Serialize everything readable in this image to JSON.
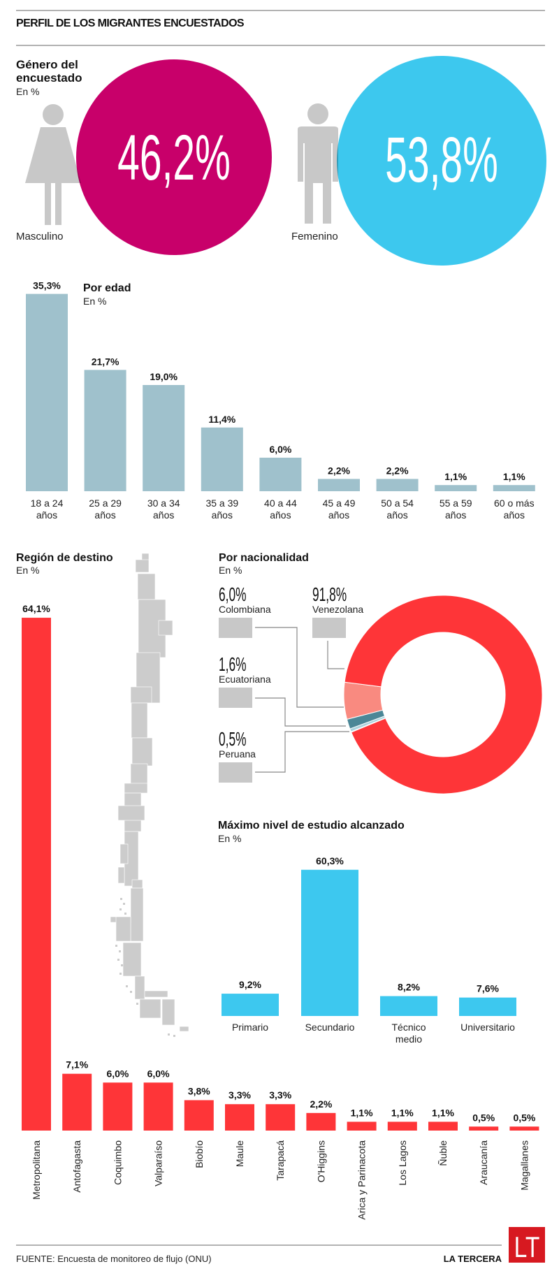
{
  "title": "PERFIL DE LOS MIGRANTES ENCUESTADOS",
  "colors": {
    "pink": "#c8006a",
    "blue": "#3dc8ee",
    "age_bar": "#9fc1cc",
    "region_bar": "#fe3538",
    "study_bar": "#3dc8ef",
    "figure": "#c8c8c8",
    "map": "#cccccc",
    "logo": "#d71920"
  },
  "gender": {
    "heading_line1": "Género del",
    "heading_line2": "encuestado",
    "unit": "En %",
    "masculino": {
      "label": "Masculino",
      "value_label": "46,2%",
      "value": 46.2,
      "icon": "female-figure-icon"
    },
    "femenino": {
      "label": "Femenino",
      "value_label": "53,8%",
      "value": 53.8,
      "icon": "male-figure-icon"
    }
  },
  "chart_data": [
    {
      "type": "bar",
      "title": "Por edad",
      "subtitle": "En %",
      "categories": [
        [
          "18 a 24",
          "años"
        ],
        [
          "25 a 29",
          "años"
        ],
        [
          "30 a 34",
          "años"
        ],
        [
          "35 a 39",
          "años"
        ],
        [
          "40 a 44",
          "años"
        ],
        [
          "45 a 49",
          "años"
        ],
        [
          "50 a 54",
          "años"
        ],
        [
          "55 a 59",
          "años"
        ],
        [
          "60 o más",
          "años"
        ]
      ],
      "values": [
        35.3,
        21.7,
        19.0,
        11.4,
        6.0,
        2.2,
        2.2,
        1.1,
        1.1
      ],
      "value_labels": [
        "35,3%",
        "21,7%",
        "19,0%",
        "11,4%",
        "6,0%",
        "2,2%",
        "2,2%",
        "1,1%",
        "1,1%"
      ],
      "ylim": [
        0,
        35.3
      ],
      "grid": false
    },
    {
      "type": "bar",
      "title": "Región de destino",
      "subtitle": "En %",
      "categories": [
        "Metropolitana",
        "Antofagasta",
        "Coquimbo",
        "Valparaíso",
        "Biobío",
        "Maule",
        "Tarapacá",
        "O'Higgins",
        "Arica y Parinacota",
        "Los Lagos",
        "Ñuble",
        "Araucanía",
        "Magallanes"
      ],
      "values": [
        64.1,
        7.1,
        6.0,
        6.0,
        3.8,
        3.3,
        3.3,
        2.2,
        1.1,
        1.1,
        1.1,
        0.5,
        0.5
      ],
      "value_labels": [
        "64,1%",
        "7,1%",
        "6,0%",
        "6,0%",
        "3,8%",
        "3,3%",
        "3,3%",
        "2,2%",
        "1,1%",
        "1,1%",
        "1,1%",
        "0,5%",
        "0,5%"
      ],
      "grid": false
    },
    {
      "type": "pie",
      "title": "Por nacionalidad",
      "subtitle": "En %",
      "donut": true,
      "slices": [
        {
          "name": "Venezolana",
          "value": 91.8,
          "label": "91,8%",
          "color": "#fe3538"
        },
        {
          "name": "Colombiana",
          "value": 6.0,
          "label": "6,0%",
          "color": "#f98a80"
        },
        {
          "name": "Ecuatoriana",
          "value": 1.6,
          "label": "1,6%",
          "color": "#4b8797"
        },
        {
          "name": "Peruana",
          "value": 0.5,
          "label": "0,5%",
          "color": "#a9d3de"
        }
      ]
    },
    {
      "type": "bar",
      "title": "Máximo nivel de estudio alcanzado",
      "subtitle": "En %",
      "categories": [
        [
          "Primario"
        ],
        [
          "Secundario"
        ],
        [
          "Técnico",
          "medio"
        ],
        [
          "Universitario"
        ]
      ],
      "values": [
        9.2,
        60.3,
        8.2,
        7.6
      ],
      "value_labels": [
        "9,2%",
        "60,3%",
        "8,2%",
        "7,6%"
      ],
      "grid": false
    }
  ],
  "footer": {
    "source": "FUENTE: Encuesta de monitoreo de flujo (ONU)",
    "brand": "LA TERCERA",
    "logo_text": "LT"
  }
}
